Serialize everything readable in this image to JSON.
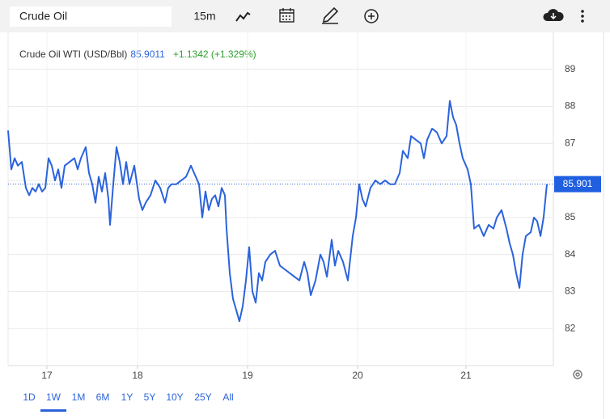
{
  "toolbar": {
    "search": "Crude Oil",
    "interval": "15m"
  },
  "chart_data": {
    "type": "line",
    "header_price": 85.9011,
    "change": "+1.1342 (+1.329%)",
    "last_price": {
      "value": 85.9011,
      "label": "85.901"
    },
    "xlim": [
      16.571,
      21.806
    ],
    "xticks": [
      17,
      18,
      19,
      20,
      21
    ],
    "ylim": [
      81,
      90
    ],
    "yticks": [
      82,
      83,
      84,
      85,
      86,
      87,
      88,
      89
    ],
    "grid": true,
    "y_axis_side": "right",
    "x": [
      16.571,
      16.607,
      16.643,
      16.679,
      16.723,
      16.768,
      16.804,
      16.839,
      16.875,
      16.911,
      16.946,
      16.982,
      17.018,
      17.054,
      17.089,
      17.125,
      17.161,
      17.196,
      17.25,
      17.304,
      17.339,
      17.375,
      17.429,
      17.464,
      17.5,
      17.536,
      17.571,
      17.607,
      17.643,
      17.679,
      17.696,
      17.732,
      17.768,
      17.804,
      17.839,
      17.875,
      17.911,
      17.964,
      18.015,
      18.044,
      18.074,
      18.118,
      18.162,
      18.206,
      18.25,
      18.279,
      18.309,
      18.353,
      18.397,
      18.441,
      18.485,
      18.515,
      18.559,
      18.588,
      18.618,
      18.647,
      18.676,
      18.706,
      18.735,
      18.765,
      18.794,
      18.809,
      18.838,
      18.868,
      18.897,
      18.926,
      18.956,
      18.985,
      19.015,
      19.044,
      19.074,
      19.103,
      19.132,
      19.162,
      19.206,
      19.25,
      19.294,
      19.338,
      19.382,
      19.426,
      19.471,
      19.515,
      19.544,
      19.574,
      19.618,
      19.662,
      19.691,
      19.721,
      19.765,
      19.794,
      19.824,
      19.868,
      19.912,
      19.956,
      19.985,
      20.015,
      20.045,
      20.075,
      20.119,
      20.164,
      20.209,
      20.254,
      20.299,
      20.343,
      20.388,
      20.418,
      20.463,
      20.493,
      20.537,
      20.582,
      20.612,
      20.642,
      20.687,
      20.731,
      20.776,
      20.821,
      20.851,
      20.881,
      20.91,
      20.94,
      20.97,
      21.015,
      21.045,
      21.075,
      21.119,
      21.164,
      21.209,
      21.254,
      21.284,
      21.328,
      21.373,
      21.403,
      21.433,
      21.463,
      21.493,
      21.522,
      21.552,
      21.597,
      21.627,
      21.657,
      21.687,
      21.716,
      21.746
    ],
    "series": [
      {
        "name": "Crude Oil WTI (USD/Bbl)",
        "color": "#2b63dc",
        "values": [
          87.35,
          86.3,
          86.6,
          86.4,
          86.5,
          85.8,
          85.6,
          85.8,
          85.7,
          85.9,
          85.7,
          85.8,
          86.6,
          86.4,
          86.0,
          86.3,
          85.8,
          86.4,
          86.5,
          86.6,
          86.3,
          86.6,
          86.9,
          86.2,
          85.9,
          85.4,
          86.1,
          85.7,
          86.2,
          85.5,
          84.8,
          85.9,
          86.9,
          86.5,
          85.9,
          86.5,
          85.9,
          86.4,
          85.5,
          85.2,
          85.4,
          85.6,
          86.0,
          85.8,
          85.4,
          85.8,
          85.9,
          85.9,
          86.0,
          86.1,
          86.4,
          86.2,
          85.9,
          85.0,
          85.7,
          85.2,
          85.5,
          85.6,
          85.3,
          85.8,
          85.6,
          84.7,
          83.5,
          82.8,
          82.5,
          82.2,
          82.6,
          83.3,
          84.2,
          83.0,
          82.7,
          83.5,
          83.3,
          83.8,
          84.0,
          84.1,
          83.7,
          83.6,
          83.5,
          83.4,
          83.3,
          83.8,
          83.5,
          82.9,
          83.3,
          84.0,
          83.8,
          83.4,
          84.4,
          83.7,
          84.1,
          83.8,
          83.3,
          84.5,
          85.0,
          85.9,
          85.5,
          85.3,
          85.8,
          86.0,
          85.9,
          86.0,
          85.9,
          85.9,
          86.2,
          86.8,
          86.6,
          87.2,
          87.1,
          87.0,
          86.6,
          87.1,
          87.4,
          87.3,
          87.0,
          87.2,
          88.15,
          87.7,
          87.5,
          87.0,
          86.6,
          86.3,
          85.9,
          84.7,
          84.8,
          84.5,
          84.8,
          84.7,
          85.0,
          85.2,
          84.7,
          84.3,
          84.0,
          83.5,
          83.1,
          84.0,
          84.5,
          84.6,
          85.0,
          84.9,
          84.5,
          85.0,
          85.9011
        ]
      }
    ]
  },
  "ranges": [
    "1D",
    "1W",
    "1M",
    "6M",
    "1Y",
    "5Y",
    "10Y",
    "25Y",
    "All"
  ],
  "selected_range": 1
}
